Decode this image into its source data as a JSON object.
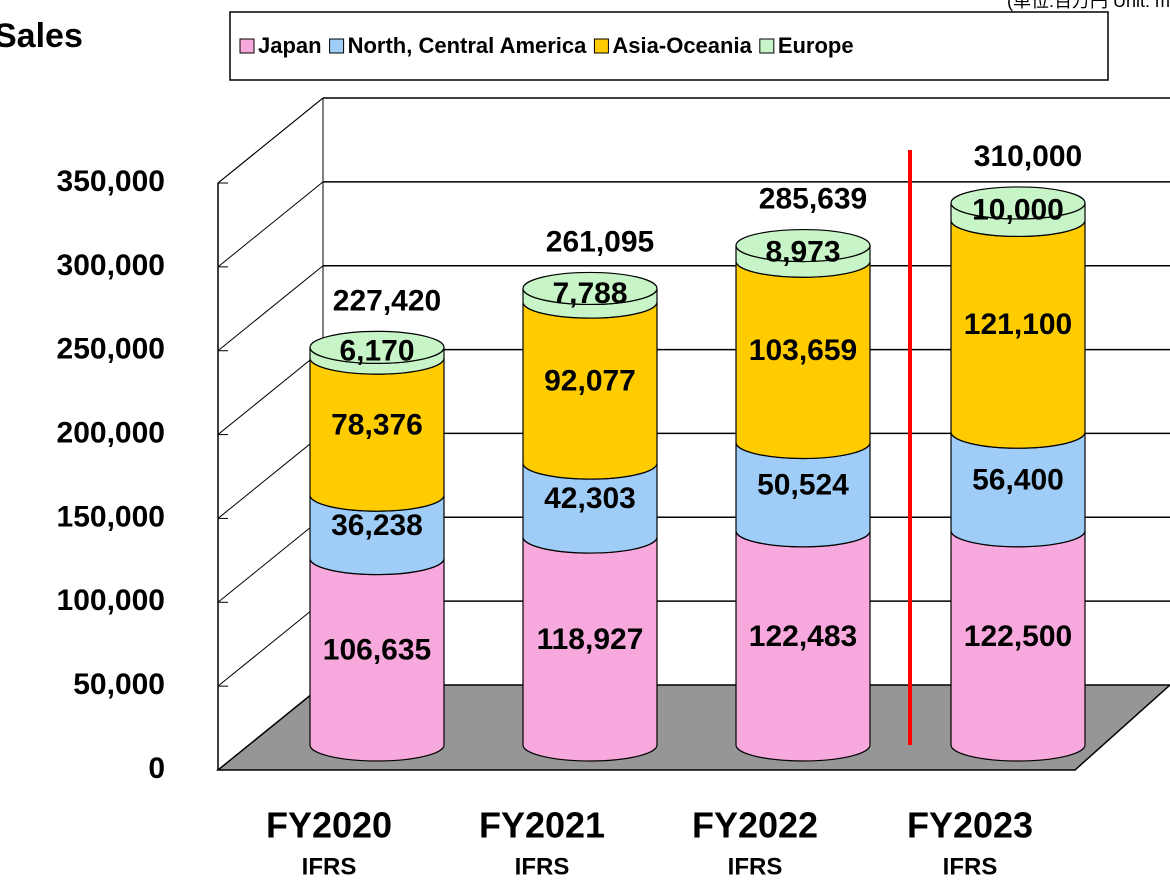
{
  "chart_data": {
    "type": "bar",
    "title": "Sales",
    "unit_note": "(単位:百万円 Unit: m",
    "categories": [
      "FY2020",
      "FY2021",
      "FY2022",
      "FY2023"
    ],
    "sublabels": [
      "IFRS",
      "IFRS",
      "IFRS",
      "IFRS"
    ],
    "series": [
      {
        "name": "Japan",
        "color": "#f7a8dc",
        "values": [
          106635,
          118927,
          122483,
          122500
        ],
        "value_labels": [
          "106,635",
          "118,927",
          "122,483",
          "122,500"
        ]
      },
      {
        "name": "North, Central America",
        "color": "#9fcdf7",
        "values": [
          36238,
          42303,
          50524,
          56400
        ],
        "value_labels": [
          "36,238",
          "42,303",
          "50,524",
          "56,400"
        ]
      },
      {
        "name": "Asia-Oceania",
        "color": "#ffcc00",
        "values": [
          78376,
          92077,
          103659,
          121100
        ],
        "value_labels": [
          "78,376",
          "92,077",
          "103,659",
          "121,100"
        ]
      },
      {
        "name": "Europe",
        "color": "#c8f5c8",
        "values": [
          6170,
          7788,
          8973,
          10000
        ],
        "value_labels": [
          "6,170",
          "7,788",
          "8,973",
          "10,000"
        ]
      }
    ],
    "totals": [
      227420,
      261095,
      285639,
      310000
    ],
    "total_labels": [
      "227,420",
      "261,095",
      "285,639",
      "310,000"
    ],
    "ylim": [
      0,
      350000
    ],
    "yticks": [
      0,
      {
        "value": 50000,
        "label": "50,000"
      },
      {
        "value": 100000,
        "label": "100,000"
      },
      {
        "value": 150000,
        "label": "150,000"
      },
      {
        "value": 200000,
        "label": "200,000"
      },
      {
        "value": 250000,
        "label": "250,000"
      },
      {
        "value": 300000,
        "label": "300,000"
      },
      {
        "value": 350000,
        "label": "350,000"
      }
    ],
    "grid": true
  }
}
